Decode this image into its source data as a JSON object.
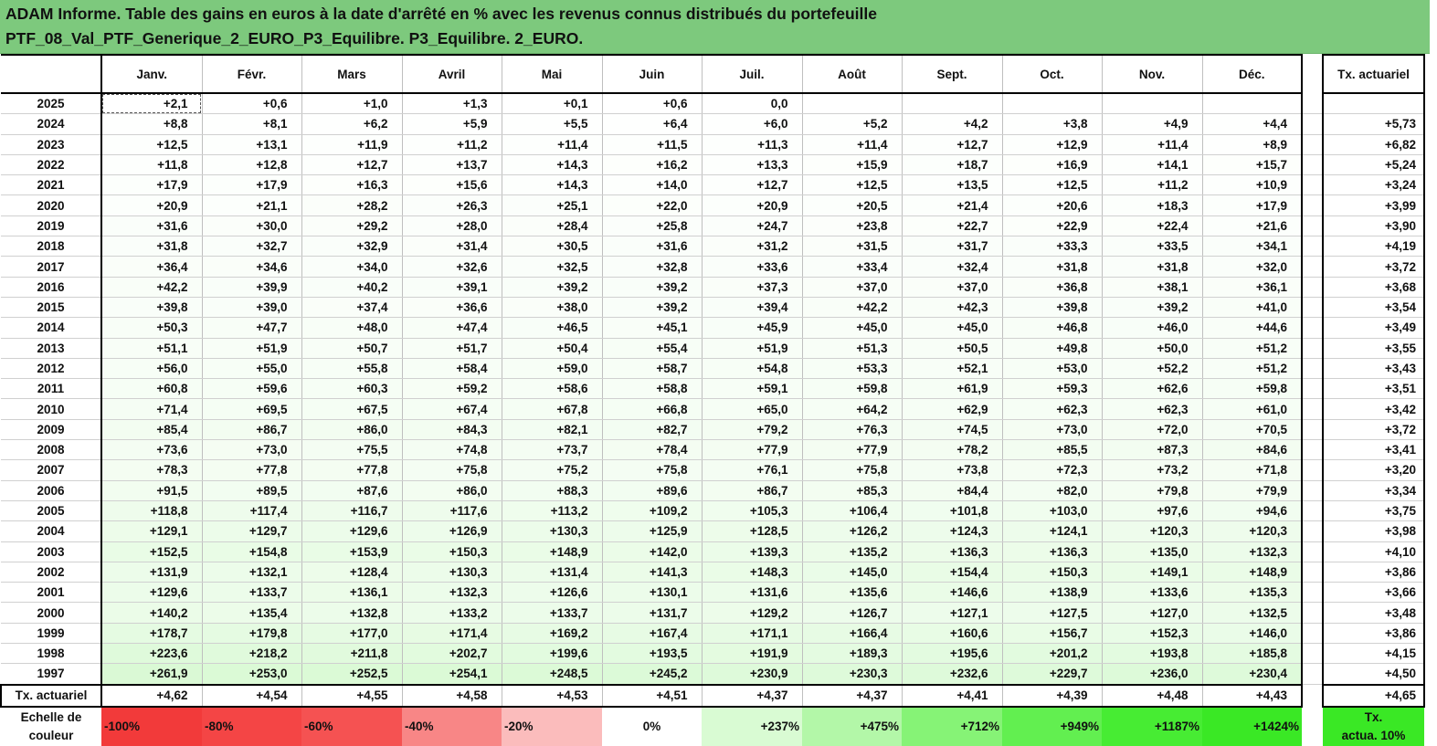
{
  "title": {
    "line1": "ADAM Informe. Table des gains en euros à la date d'arrêté en % avec les revenus connus distribués du portefeuille",
    "line2": "PTF_08_Val_PTF_Generique_2_EURO_P3_Equilibre. P3_Equilibre. 2_EURO."
  },
  "table": {
    "months": [
      "Janv.",
      "Févr.",
      "Mars",
      "Avril",
      "Mai",
      "Juin",
      "Juil.",
      "Août",
      "Sept.",
      "Oct.",
      "Nov.",
      "Déc."
    ],
    "rate_header": "Tx. actuariel",
    "rows": [
      {
        "year": "2025",
        "values": [
          "+2,1",
          "+0,6",
          "+1,0",
          "+1,3",
          "+0,1",
          "+0,6",
          "0,0",
          "",
          "",
          "",
          "",
          ""
        ],
        "rate": ""
      },
      {
        "year": "2024",
        "values": [
          "+8,8",
          "+8,1",
          "+6,2",
          "+5,9",
          "+5,5",
          "+6,4",
          "+6,0",
          "+5,2",
          "+4,2",
          "+3,8",
          "+4,9",
          "+4,4"
        ],
        "rate": "+5,73"
      },
      {
        "year": "2023",
        "values": [
          "+12,5",
          "+13,1",
          "+11,9",
          "+11,2",
          "+11,4",
          "+11,5",
          "+11,3",
          "+11,4",
          "+12,7",
          "+12,9",
          "+11,4",
          "+8,9"
        ],
        "rate": "+6,82"
      },
      {
        "year": "2022",
        "values": [
          "+11,8",
          "+12,8",
          "+12,7",
          "+13,7",
          "+14,3",
          "+16,2",
          "+13,3",
          "+15,9",
          "+18,7",
          "+16,9",
          "+14,1",
          "+15,7"
        ],
        "rate": "+5,24"
      },
      {
        "year": "2021",
        "values": [
          "+17,9",
          "+17,9",
          "+16,3",
          "+15,6",
          "+14,3",
          "+14,0",
          "+12,7",
          "+12,5",
          "+13,5",
          "+12,5",
          "+11,2",
          "+10,9"
        ],
        "rate": "+3,24"
      },
      {
        "year": "2020",
        "values": [
          "+20,9",
          "+21,1",
          "+28,2",
          "+26,3",
          "+25,1",
          "+22,0",
          "+20,9",
          "+20,5",
          "+21,4",
          "+20,6",
          "+18,3",
          "+17,9"
        ],
        "rate": "+3,99"
      },
      {
        "year": "2019",
        "values": [
          "+31,6",
          "+30,0",
          "+29,2",
          "+28,0",
          "+28,4",
          "+25,8",
          "+24,7",
          "+23,8",
          "+22,7",
          "+22,9",
          "+22,4",
          "+21,6"
        ],
        "rate": "+3,90"
      },
      {
        "year": "2018",
        "values": [
          "+31,8",
          "+32,7",
          "+32,9",
          "+31,4",
          "+30,5",
          "+31,6",
          "+31,2",
          "+31,5",
          "+31,7",
          "+33,3",
          "+33,5",
          "+34,1"
        ],
        "rate": "+4,19"
      },
      {
        "year": "2017",
        "values": [
          "+36,4",
          "+34,6",
          "+34,0",
          "+32,6",
          "+32,5",
          "+32,8",
          "+33,6",
          "+33,4",
          "+32,4",
          "+31,8",
          "+31,8",
          "+32,0"
        ],
        "rate": "+3,72"
      },
      {
        "year": "2016",
        "values": [
          "+42,2",
          "+39,9",
          "+40,2",
          "+39,1",
          "+39,2",
          "+39,2",
          "+37,3",
          "+37,0",
          "+37,0",
          "+36,8",
          "+38,1",
          "+36,1"
        ],
        "rate": "+3,68"
      },
      {
        "year": "2015",
        "values": [
          "+39,8",
          "+39,0",
          "+37,4",
          "+36,6",
          "+38,0",
          "+39,2",
          "+39,4",
          "+42,2",
          "+42,3",
          "+39,8",
          "+39,2",
          "+41,0"
        ],
        "rate": "+3,54"
      },
      {
        "year": "2014",
        "values": [
          "+50,3",
          "+47,7",
          "+48,0",
          "+47,4",
          "+46,5",
          "+45,1",
          "+45,9",
          "+45,0",
          "+45,0",
          "+46,8",
          "+46,0",
          "+44,6"
        ],
        "rate": "+3,49"
      },
      {
        "year": "2013",
        "values": [
          "+51,1",
          "+51,9",
          "+50,7",
          "+51,7",
          "+50,4",
          "+55,4",
          "+51,9",
          "+51,3",
          "+50,5",
          "+49,8",
          "+50,0",
          "+51,2"
        ],
        "rate": "+3,55"
      },
      {
        "year": "2012",
        "values": [
          "+56,0",
          "+55,0",
          "+55,8",
          "+58,4",
          "+59,0",
          "+58,7",
          "+54,8",
          "+53,3",
          "+52,1",
          "+53,0",
          "+52,2",
          "+51,2"
        ],
        "rate": "+3,43"
      },
      {
        "year": "2011",
        "values": [
          "+60,8",
          "+59,6",
          "+60,3",
          "+59,2",
          "+58,6",
          "+58,8",
          "+59,1",
          "+59,8",
          "+61,9",
          "+59,3",
          "+62,6",
          "+59,8"
        ],
        "rate": "+3,51"
      },
      {
        "year": "2010",
        "values": [
          "+71,4",
          "+69,5",
          "+67,5",
          "+67,4",
          "+67,8",
          "+66,8",
          "+65,0",
          "+64,2",
          "+62,9",
          "+62,3",
          "+62,3",
          "+61,0"
        ],
        "rate": "+3,42"
      },
      {
        "year": "2009",
        "values": [
          "+85,4",
          "+86,7",
          "+86,0",
          "+84,3",
          "+82,1",
          "+82,7",
          "+79,2",
          "+76,3",
          "+74,5",
          "+73,0",
          "+72,0",
          "+70,5"
        ],
        "rate": "+3,72"
      },
      {
        "year": "2008",
        "values": [
          "+73,6",
          "+73,0",
          "+75,5",
          "+74,8",
          "+73,7",
          "+78,4",
          "+77,9",
          "+77,9",
          "+78,2",
          "+85,5",
          "+87,3",
          "+84,6"
        ],
        "rate": "+3,41"
      },
      {
        "year": "2007",
        "values": [
          "+78,3",
          "+77,8",
          "+77,8",
          "+75,8",
          "+75,2",
          "+75,8",
          "+76,1",
          "+75,8",
          "+73,8",
          "+72,3",
          "+73,2",
          "+71,8"
        ],
        "rate": "+3,20"
      },
      {
        "year": "2006",
        "values": [
          "+91,5",
          "+89,5",
          "+87,6",
          "+86,0",
          "+88,3",
          "+89,6",
          "+86,7",
          "+85,3",
          "+84,4",
          "+82,0",
          "+79,8",
          "+79,9"
        ],
        "rate": "+3,34"
      },
      {
        "year": "2005",
        "values": [
          "+118,8",
          "+117,4",
          "+116,7",
          "+117,6",
          "+113,2",
          "+109,2",
          "+105,3",
          "+106,4",
          "+101,8",
          "+103,0",
          "+97,6",
          "+94,6"
        ],
        "rate": "+3,75"
      },
      {
        "year": "2004",
        "values": [
          "+129,1",
          "+129,7",
          "+129,6",
          "+126,9",
          "+130,3",
          "+125,9",
          "+128,5",
          "+126,2",
          "+124,3",
          "+124,1",
          "+120,3",
          "+120,3"
        ],
        "rate": "+3,98"
      },
      {
        "year": "2003",
        "values": [
          "+152,5",
          "+154,8",
          "+153,9",
          "+150,3",
          "+148,9",
          "+142,0",
          "+139,3",
          "+135,2",
          "+136,3",
          "+136,3",
          "+135,0",
          "+132,3"
        ],
        "rate": "+4,10"
      },
      {
        "year": "2002",
        "values": [
          "+131,9",
          "+132,1",
          "+128,4",
          "+130,3",
          "+131,4",
          "+141,3",
          "+148,3",
          "+145,0",
          "+154,4",
          "+150,3",
          "+149,1",
          "+148,9"
        ],
        "rate": "+3,86"
      },
      {
        "year": "2001",
        "values": [
          "+129,6",
          "+133,7",
          "+136,1",
          "+132,3",
          "+126,6",
          "+130,1",
          "+131,6",
          "+135,6",
          "+146,6",
          "+138,9",
          "+133,6",
          "+135,3"
        ],
        "rate": "+3,66"
      },
      {
        "year": "2000",
        "values": [
          "+140,2",
          "+135,4",
          "+132,8",
          "+133,2",
          "+133,7",
          "+131,7",
          "+129,2",
          "+126,7",
          "+127,1",
          "+127,5",
          "+127,0",
          "+132,5"
        ],
        "rate": "+3,48"
      },
      {
        "year": "1999",
        "values": [
          "+178,7",
          "+179,8",
          "+177,0",
          "+171,4",
          "+169,2",
          "+167,4",
          "+171,1",
          "+166,4",
          "+160,6",
          "+156,7",
          "+152,3",
          "+146,0"
        ],
        "rate": "+3,86"
      },
      {
        "year": "1998",
        "values": [
          "+223,6",
          "+218,2",
          "+211,8",
          "+202,7",
          "+199,6",
          "+193,5",
          "+191,9",
          "+189,3",
          "+195,6",
          "+201,2",
          "+193,8",
          "+185,8"
        ],
        "rate": "+4,15"
      },
      {
        "year": "1997",
        "values": [
          "+261,9",
          "+253,0",
          "+252,5",
          "+254,1",
          "+248,5",
          "+245,2",
          "+230,9",
          "+230,3",
          "+232,6",
          "+229,7",
          "+236,0",
          "+230,4"
        ],
        "rate": "+4,50"
      }
    ],
    "tx_row": {
      "label": "Tx. actuariel",
      "values": [
        "+4,62",
        "+4,54",
        "+4,55",
        "+4,58",
        "+4,53",
        "+4,51",
        "+4,37",
        "+4,37",
        "+4,41",
        "+4,39",
        "+4,48",
        "+4,43"
      ],
      "rate": "+4,65"
    },
    "scale_row": {
      "label_line1": "Echelle de",
      "label_line2": "couleur",
      "steps": [
        {
          "text": "-100%",
          "color": "#f23a3a"
        },
        {
          "text": "-80%",
          "color": "#f44545"
        },
        {
          "text": "-60%",
          "color": "#f55252"
        },
        {
          "text": "-40%",
          "color": "#f88686"
        },
        {
          "text": "-20%",
          "color": "#fbbcbc"
        },
        {
          "text": "0%",
          "color": "#ffffff"
        },
        {
          "text": "+237%",
          "color": "#d9fbd3"
        },
        {
          "text": "+475%",
          "color": "#b3f7a8"
        },
        {
          "text": "+712%",
          "color": "#86f376"
        },
        {
          "text": "+949%",
          "color": "#62ef50"
        },
        {
          "text": "+1187%",
          "color": "#47ec33"
        },
        {
          "text": "+1424%",
          "color": "#3ae825"
        }
      ],
      "rate_line1": "Tx.",
      "rate_line2": "actua. 10%",
      "rate_color": "#3ae825"
    },
    "colors": {
      "banner": "#7dc97d",
      "gain_max_value": 1424
    }
  }
}
